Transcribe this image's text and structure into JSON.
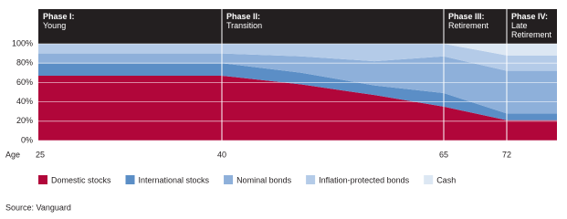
{
  "chart_data": {
    "type": "area",
    "stacked": true,
    "grid": true,
    "x_label": "Age",
    "categories": [
      "25",
      "40",
      null,
      null,
      "65",
      "72",
      null
    ],
    "phases": [
      {
        "title": "Phase I:",
        "subtitle": "Young"
      },
      {
        "title": "Phase II:",
        "subtitle": "Transition"
      },
      {
        "title": "Phase III:",
        "subtitle": "Retirement"
      },
      {
        "title": "Phase IV:",
        "subtitle": "Late Retirement"
      }
    ],
    "series": [
      {
        "name": "Domestic stocks",
        "color": "#b1063a",
        "values": [
          67,
          67,
          58,
          47,
          35,
          21,
          21
        ]
      },
      {
        "name": "International stocks",
        "color": "#5b8ec6",
        "values": [
          13,
          13,
          12,
          10,
          14,
          7,
          7
        ]
      },
      {
        "name": "Nominal bonds",
        "color": "#8eb0da",
        "values": [
          10,
          10,
          17,
          25,
          38,
          44,
          44
        ]
      },
      {
        "name": "Inflation-protected bonds",
        "color": "#b4cbe8",
        "values": [
          10,
          10,
          13,
          18,
          13,
          16,
          16
        ]
      },
      {
        "name": "Cash",
        "color": "#dce7f3",
        "values": [
          0,
          0,
          0,
          0,
          0,
          12,
          12
        ]
      }
    ],
    "ylim": [
      0,
      100
    ],
    "yticks": [
      {
        "value": 0,
        "label": "0%"
      },
      {
        "value": 20,
        "label": "20%"
      },
      {
        "value": 40,
        "label": "40%"
      },
      {
        "value": 60,
        "label": "60%"
      },
      {
        "value": 80,
        "label": "80%"
      },
      {
        "value": 100,
        "label": "100%"
      }
    ],
    "source": "Source: Vanguard"
  }
}
